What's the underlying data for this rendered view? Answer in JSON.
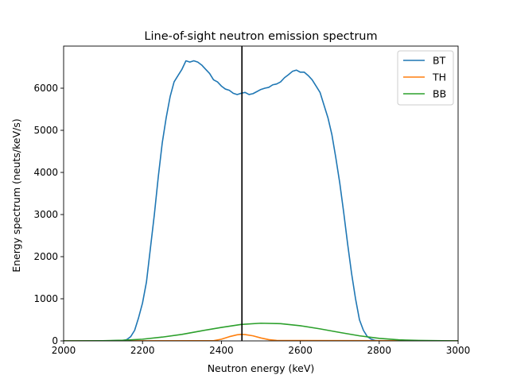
{
  "chart_data": {
    "type": "line",
    "title": "Line-of-sight neutron emission spectrum",
    "xlabel": "Neutron energy (keV)",
    "ylabel": "Energy spectrum (neuts/keV/s)",
    "xlim": [
      2000,
      3000
    ],
    "ylim": [
      0,
      7000
    ],
    "xticks": [
      2000,
      2200,
      2400,
      2600,
      2800,
      3000
    ],
    "yticks": [
      0,
      1000,
      2000,
      3000,
      4000,
      5000,
      6000
    ],
    "grid": false,
    "legend_position": "top-right",
    "vline": {
      "x": 2452,
      "color": "#000000"
    },
    "series": [
      {
        "name": "BT",
        "color": "#1f77b4",
        "x": [
          2000,
          2100,
          2150,
          2160,
          2170,
          2180,
          2190,
          2200,
          2210,
          2220,
          2230,
          2240,
          2250,
          2260,
          2270,
          2280,
          2290,
          2300,
          2310,
          2320,
          2330,
          2340,
          2350,
          2360,
          2370,
          2380,
          2390,
          2400,
          2410,
          2420,
          2430,
          2440,
          2450,
          2460,
          2470,
          2480,
          2490,
          2500,
          2510,
          2520,
          2530,
          2540,
          2550,
          2560,
          2570,
          2580,
          2590,
          2600,
          2610,
          2620,
          2630,
          2640,
          2650,
          2660,
          2670,
          2680,
          2690,
          2700,
          2710,
          2720,
          2730,
          2740,
          2750,
          2760,
          2770,
          2780,
          2790,
          2800,
          2850,
          2900,
          3000
        ],
        "y": [
          0,
          0,
          10,
          30,
          100,
          250,
          550,
          900,
          1400,
          2200,
          3000,
          3900,
          4700,
          5300,
          5800,
          6150,
          6300,
          6450,
          6650,
          6620,
          6650,
          6620,
          6550,
          6450,
          6350,
          6200,
          6150,
          6050,
          5980,
          5950,
          5880,
          5850,
          5880,
          5900,
          5850,
          5870,
          5920,
          5970,
          6000,
          6020,
          6080,
          6100,
          6150,
          6250,
          6320,
          6400,
          6430,
          6380,
          6380,
          6300,
          6200,
          6050,
          5900,
          5600,
          5300,
          4900,
          4350,
          3750,
          3050,
          2300,
          1600,
          1000,
          500,
          250,
          100,
          40,
          10,
          0,
          0,
          0,
          0
        ]
      },
      {
        "name": "TH",
        "color": "#ff7f0e",
        "x": [
          2000,
          2380,
          2400,
          2420,
          2440,
          2450,
          2460,
          2480,
          2500,
          2520,
          2540,
          3000
        ],
        "y": [
          0,
          5,
          40,
          100,
          145,
          155,
          150,
          120,
          70,
          30,
          10,
          0
        ]
      },
      {
        "name": "BB",
        "color": "#2ca02c",
        "x": [
          2000,
          2100,
          2150,
          2200,
          2250,
          2300,
          2350,
          2400,
          2450,
          2500,
          2550,
          2600,
          2650,
          2700,
          2750,
          2800,
          2850,
          2900,
          3000
        ],
        "y": [
          0,
          5,
          15,
          40,
          90,
          155,
          240,
          320,
          390,
          420,
          410,
          360,
          285,
          200,
          120,
          60,
          25,
          10,
          0
        ]
      }
    ]
  }
}
